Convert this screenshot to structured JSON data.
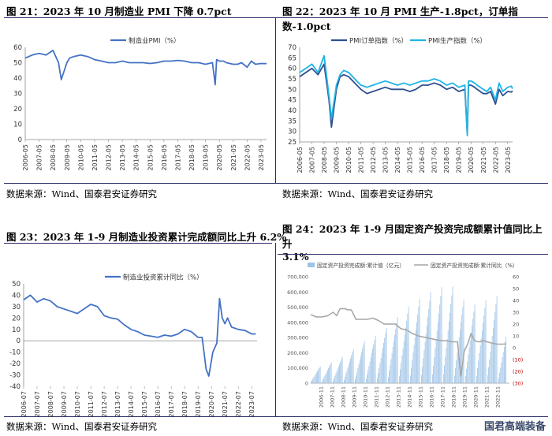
{
  "chart_data": [
    {
      "id": "c21",
      "type": "line",
      "title": "图 21：2023 年 10 月制造业 PMI 下降 0.7pct",
      "legend": [
        "制造业PMI（%）"
      ],
      "ylim": [
        0,
        60
      ],
      "yticks": [
        "0",
        "10",
        "20",
        "30",
        "40",
        "50",
        "60"
      ],
      "xticks": [
        "2006-05",
        "2007-05",
        "2008-05",
        "2009-05",
        "2010-05",
        "2011-05",
        "2012-05",
        "2013-05",
        "2014-05",
        "2015-05",
        "2016-05",
        "2017-05",
        "2018-05",
        "2019-05",
        "2020-05",
        "2021-05",
        "2022-05",
        "2023-05"
      ],
      "colors": [
        "#4472c4"
      ],
      "series": [
        {
          "name": "制造业PMI（%）",
          "x": [
            0,
            0.5,
            1,
            1.5,
            2,
            2.4,
            2.6,
            3,
            3.2,
            3.5,
            4,
            4.5,
            5,
            5.5,
            6,
            6.5,
            7,
            7.5,
            8,
            8.5,
            9,
            9.5,
            10,
            10.5,
            11,
            11.5,
            12,
            12.5,
            13,
            13.5,
            13.7,
            13.8,
            14,
            14.3,
            14.5,
            15,
            15.3,
            15.6,
            16,
            16.3,
            16.6,
            17,
            17.3,
            17.4
          ],
          "values": [
            53,
            55,
            56,
            55,
            58,
            50,
            39,
            50,
            53,
            54,
            55,
            54,
            52,
            51,
            50,
            50,
            51,
            50,
            50,
            50,
            49.5,
            50,
            51,
            51,
            51.5,
            51,
            50,
            50,
            49,
            50,
            35.7,
            52,
            51,
            51,
            50,
            49,
            49,
            50,
            47,
            51,
            49,
            49.5,
            49.4,
            49.5
          ]
        }
      ],
      "source": "数据来源：Wind、国泰君安证券研究"
    },
    {
      "id": "c22",
      "type": "line",
      "title": "图 22：2023 年 10 月 PMI 生产-1.8pct，订单指数-1.0pct",
      "legend": [
        "PMI订单指数（%）",
        "PMI生产指数（%）"
      ],
      "ylim": [
        25,
        70
      ],
      "yticks": [
        "25",
        "30",
        "35",
        "40",
        "45",
        "50",
        "55",
        "60",
        "65",
        "70"
      ],
      "xticks": [
        "2006-05",
        "2007-05",
        "2008-05",
        "2009-05",
        "2010-05",
        "2011-05",
        "2012-05",
        "2013-05",
        "2014-05",
        "2015-05",
        "2016-05",
        "2017-05",
        "2018-05",
        "2019-05",
        "2020-05",
        "2021-05",
        "2022-05",
        "2023-05"
      ],
      "colors": [
        "#2e4e8e",
        "#1fb4e6"
      ],
      "series": [
        {
          "name": "PMI订单指数（%）",
          "x": [
            0,
            0.5,
            1,
            1.5,
            2,
            2.4,
            2.6,
            3,
            3.3,
            3.6,
            4,
            4.5,
            5,
            5.5,
            6,
            6.5,
            7,
            7.5,
            8,
            8.5,
            9,
            9.5,
            10,
            10.5,
            11,
            11.5,
            12,
            12.5,
            13,
            13.5,
            13.7,
            13.8,
            14,
            14.3,
            14.5,
            15,
            15.3,
            15.6,
            16,
            16.3,
            16.6,
            17,
            17.3,
            17.4
          ],
          "values": [
            56,
            58,
            60,
            57,
            62,
            45,
            32,
            50,
            56,
            57,
            56,
            53,
            50,
            48,
            49,
            50,
            51,
            50,
            50,
            50,
            49,
            50,
            52,
            52,
            53,
            52,
            50,
            51,
            49,
            50,
            29,
            52,
            52,
            51,
            50,
            48,
            48,
            49,
            43,
            50,
            47,
            49,
            48.7,
            49.2
          ]
        },
        {
          "name": "PMI生产指数（%）",
          "x": [
            0,
            0.5,
            1,
            1.5,
            2,
            2.4,
            2.6,
            3,
            3.3,
            3.6,
            4,
            4.5,
            5,
            5.5,
            6,
            6.5,
            7,
            7.5,
            8,
            8.5,
            9,
            9.5,
            10,
            10.5,
            11,
            11.5,
            12,
            12.5,
            13,
            13.5,
            13.7,
            13.8,
            14,
            14.3,
            14.5,
            15,
            15.3,
            15.6,
            16,
            16.3,
            16.6,
            17,
            17.3,
            17.4
          ],
          "values": [
            58,
            60,
            62,
            58,
            66,
            47,
            36,
            52,
            57,
            59,
            58,
            55,
            52,
            51,
            52,
            53,
            54,
            53,
            52,
            53,
            52,
            53,
            54,
            54,
            55,
            54,
            52,
            53,
            51,
            52,
            28,
            54,
            54,
            53,
            52,
            50,
            49,
            51,
            45,
            53,
            49,
            51,
            51.5,
            50.3
          ]
        }
      ],
      "source": "数据来源：Wind、国泰君安证券研究"
    },
    {
      "id": "c23",
      "type": "line",
      "title": "图 23：2023 年 1-9 月制造业投资累计完成额同比上升 6.2%",
      "legend": [
        "制造业投资累计同比（%）"
      ],
      "ylim": [
        -40,
        50
      ],
      "yticks": [
        "-40",
        "-30",
        "-20",
        "-10",
        "0",
        "10",
        "20",
        "30",
        "40",
        "50"
      ],
      "xticks": [
        "2006-07",
        "2007-07",
        "2008-07",
        "2009-07",
        "2010-07",
        "2011-07",
        "2012-07",
        "2013-07",
        "2014-07",
        "2015-07",
        "2016-07",
        "2017-07",
        "2018-07",
        "2019-07",
        "2020-07",
        "2021-07",
        "2022-07",
        "2023-07"
      ],
      "colors": [
        "#4472c4"
      ],
      "series": [
        {
          "name": "制造业投资累计同比（%）",
          "x": [
            0,
            0.5,
            1,
            1.5,
            2,
            2.5,
            3,
            3.5,
            4,
            4.5,
            5,
            5.5,
            6,
            6.5,
            7,
            7.5,
            8,
            8.5,
            9,
            9.5,
            10,
            10.5,
            11,
            11.5,
            12,
            12.5,
            13,
            13.3,
            13.6,
            13.8,
            14.1,
            14.4,
            14.6,
            14.8,
            15,
            15.2,
            15.5,
            16,
            16.5,
            17,
            17.2,
            17.3
          ],
          "values": [
            36,
            40,
            34,
            37,
            35,
            30,
            28,
            26,
            24,
            28,
            32,
            30,
            22,
            20,
            19,
            14,
            10,
            8,
            5,
            4,
            3,
            5,
            4,
            6,
            10,
            8,
            3,
            3,
            -25,
            -31,
            -10,
            -2,
            37,
            20,
            15,
            20,
            12,
            10,
            9,
            6,
            6,
            6.2
          ]
        }
      ],
      "source": "数据来源：Wind、国泰君安证券研究"
    },
    {
      "id": "c24",
      "type": "bar",
      "title_line1": "图 24：2023 年 1-9 月固定资产投资完成额累计值同比上升",
      "title_line2": "3.1%",
      "legend": [
        "固定资产投资完成额:累计值（亿元）",
        "固定资产投资完成额:累计同比（%）"
      ],
      "ylim_left": [
        0,
        700000
      ],
      "ylim_right": [
        -30,
        60
      ],
      "yticks_left": [
        "0",
        "100,000",
        "200,000",
        "300,000",
        "400,000",
        "500,000",
        "600,000",
        "700,000"
      ],
      "yticks_right": [
        "(30)",
        "(20)",
        "(10)",
        "0",
        "10",
        "20",
        "30",
        "40",
        "50",
        "60"
      ],
      "xticks": [
        "2006-11",
        "2007-11",
        "2008-11",
        "2009-11",
        "2010-11",
        "2011-11",
        "2012-11",
        "2013-11",
        "2014-11",
        "2015-11",
        "2016-11",
        "2017-11",
        "2018-11",
        "2019-11",
        "2020-11",
        "2021-11",
        "2022-11"
      ],
      "colors": [
        "#9dc3e6",
        "#a6a6a6"
      ],
      "bars_annual_peak": [
        110000,
        137000,
        172000,
        224000,
        278000,
        311000,
        364000,
        436000,
        502000,
        552000,
        597000,
        631000,
        635000,
        551000,
        518000,
        544000,
        572000,
        375000
      ],
      "yoy": {
        "x": [
          0,
          0.5,
          1,
          1.5,
          2,
          2.3,
          2.6,
          3,
          3.3,
          3.6,
          4,
          4.5,
          5,
          5.5,
          6,
          6.5,
          7,
          7.5,
          8,
          8.5,
          9,
          9.5,
          10,
          10.5,
          11,
          11.5,
          12,
          12.5,
          13,
          13.3,
          13.6,
          13.9,
          14.2,
          14.5,
          14.8,
          15,
          15.3,
          15.6,
          16,
          16.5,
          17,
          17.3
        ],
        "values": [
          28,
          26,
          26,
          27,
          30,
          27,
          33,
          33,
          32,
          32,
          24,
          24,
          24,
          25,
          23,
          20,
          20,
          20,
          16,
          15,
          12,
          10,
          9,
          8,
          7,
          6,
          6,
          5,
          5,
          -24,
          -3,
          3,
          12,
          6,
          5,
          5,
          6,
          5,
          4,
          3,
          3,
          3.1
        ]
      },
      "source": "数据来源：Wind、国泰君安证券研究"
    }
  ],
  "watermark": "国君高端装备"
}
